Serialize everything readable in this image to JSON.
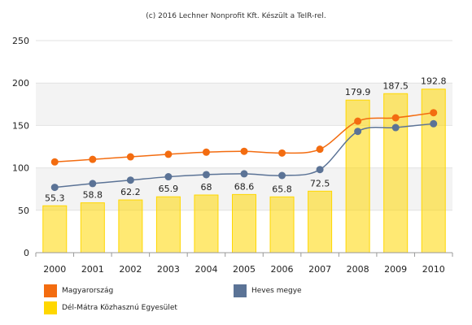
{
  "credit": "(c) 2016 Lechner Nonprofit Kft. Készült a TeIR-rel.",
  "chart_data": {
    "type": "bar",
    "categories": [
      "2000",
      "2001",
      "2002",
      "2003",
      "2004",
      "2005",
      "2006",
      "2007",
      "2008",
      "2009",
      "2010"
    ],
    "ylim": [
      0,
      250
    ],
    "yticks": [
      0,
      50,
      100,
      150,
      200,
      250
    ],
    "grid": true,
    "legend_position": "bottom",
    "series": [
      {
        "name": "Dél-Mátra Közhasznú Egyesület",
        "type": "bar",
        "color": "#ffd700",
        "values": [
          55.3,
          58.8,
          62.2,
          65.9,
          68,
          68.6,
          65.8,
          72.5,
          179.9,
          187.5,
          192.8
        ],
        "data_labels": [
          "55.3",
          "58.8",
          "62.2",
          "65.9",
          "68",
          "68.6",
          "65.8",
          "72.5",
          "179.9",
          "187.5",
          "192.8"
        ]
      },
      {
        "name": "Magyarország",
        "type": "line",
        "color": "#f36c10",
        "values": [
          107,
          110,
          113,
          116,
          118.5,
          119.5,
          117.5,
          122,
          155,
          159,
          165
        ]
      },
      {
        "name": "Heves megye",
        "type": "line",
        "color": "#5b7396",
        "values": [
          77,
          81.5,
          85.5,
          89.5,
          92,
          93,
          91,
          98,
          143,
          147.5,
          152
        ]
      }
    ]
  }
}
